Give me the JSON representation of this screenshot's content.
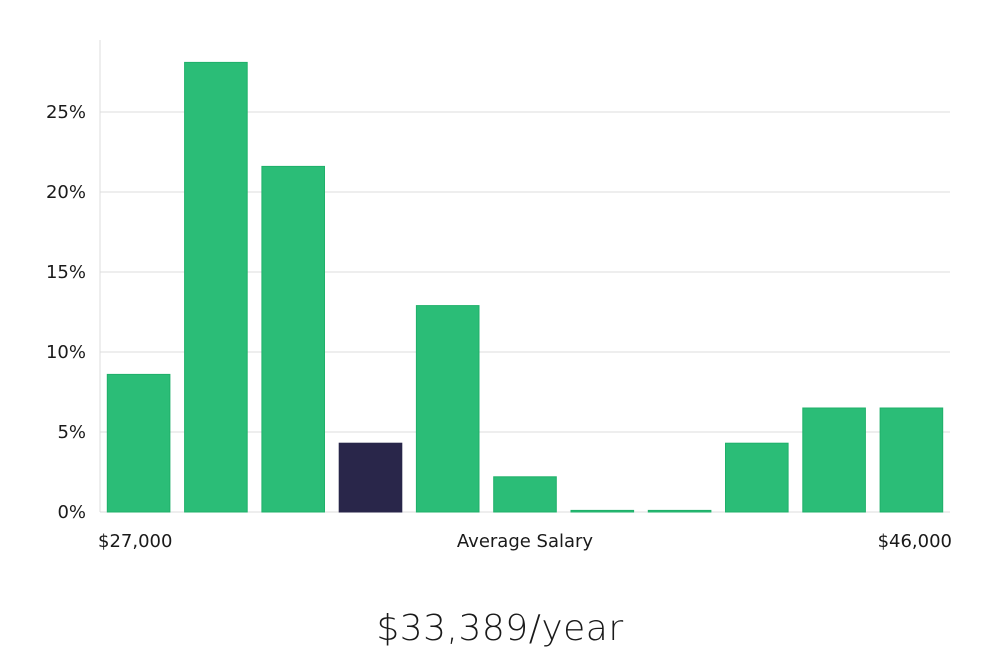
{
  "chart_data": {
    "type": "bar",
    "title": "",
    "xlabel": "Average Salary",
    "ylabel": "",
    "x_start_label": "$27,000",
    "x_end_label": "$46,000",
    "ylim": [
      0,
      29.5
    ],
    "yticks": [
      0,
      5,
      10,
      15,
      20,
      25
    ],
    "ytick_labels": [
      "0%",
      "5%",
      "10%",
      "15%",
      "20%",
      "25%"
    ],
    "grid": true,
    "values": [
      8.6,
      28.1,
      21.6,
      4.3,
      12.9,
      2.2,
      0.1,
      0.1,
      4.3,
      6.5,
      6.5
    ],
    "highlight_index": 3,
    "colors": {
      "bar": "#2bbd77",
      "bar_edge": "#1fb06a",
      "highlight": "#29264a",
      "grid": "#dcdcdc",
      "axis": "#dcdcdc"
    }
  },
  "summary": {
    "salary_text": "$33,389/year"
  }
}
